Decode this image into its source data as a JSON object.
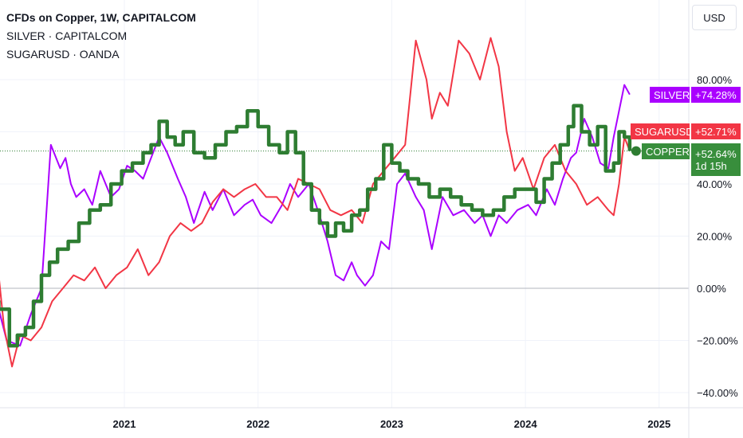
{
  "legend": {
    "title": "CFDs on Copper, 1W, CAPITALCOM",
    "compare1": "SILVER · CAPITALCOM",
    "compare2": "SUGARUSD · OANDA"
  },
  "currency_button": "USD",
  "price_tags": {
    "silver": {
      "name": "SILVER",
      "value": "+74.28%"
    },
    "sugar": {
      "name": "SUGARUSD",
      "value": "+52.71%"
    },
    "copper": {
      "name": "COPPER",
      "value": "+52.64%",
      "countdown": "1d 15h"
    }
  },
  "colors": {
    "copper": "#2e7d32",
    "silver": "#aa00ff",
    "sugar": "#f23645",
    "copper_tag": "#388e3c"
  },
  "chart_data": {
    "type": "line",
    "title": "CFDs on Copper, 1W, CAPITALCOM",
    "y_unit": "% change",
    "ylim": [
      -45,
      105
    ],
    "y_ticks": [
      "80.00%",
      "60.00%",
      "40.00%",
      "20.00%",
      "0.00%",
      "−20.00%",
      "−40.00%"
    ],
    "y_tick_values": [
      80,
      60,
      40,
      20,
      0,
      -20,
      -40
    ],
    "x_ticks": [
      "2021",
      "2022",
      "2023",
      "2024",
      "2025"
    ],
    "grid": true,
    "series": [
      {
        "name": "SILVER",
        "x": [
          2020.0,
          2020.05,
          2020.12,
          2020.22,
          2020.3,
          2020.38,
          2020.45,
          2020.52,
          2020.56,
          2020.6,
          2020.64,
          2020.7,
          2020.76,
          2020.82,
          2020.9,
          2020.96,
          2021.02,
          2021.08,
          2021.14,
          2021.2,
          2021.26,
          2021.32,
          2021.4,
          2021.46,
          2021.52,
          2021.6,
          2021.66,
          2021.74,
          2021.82,
          2021.9,
          2021.96,
          2022.02,
          2022.1,
          2022.18,
          2022.24,
          2022.3,
          2022.38,
          2022.46,
          2022.52,
          2022.58,
          2022.64,
          2022.7,
          2022.74,
          2022.8,
          2022.86,
          2022.92,
          2022.98,
          2023.04,
          2023.1,
          2023.18,
          2023.24,
          2023.3,
          2023.38,
          2023.46,
          2023.54,
          2023.62,
          2023.68,
          2023.74,
          2023.8,
          2023.86,
          2023.94,
          2024.02,
          2024.08,
          2024.16,
          2024.22,
          2024.28,
          2024.34,
          2024.38,
          2024.44,
          2024.5,
          2024.56,
          2024.62,
          2024.66,
          2024.7,
          2024.74,
          2024.78
        ],
        "values": [
          -1,
          -6,
          -20,
          -22,
          -10,
          0,
          55,
          46,
          50,
          40,
          35,
          38,
          32,
          45,
          35,
          38,
          47,
          45,
          42,
          50,
          58,
          52,
          42,
          35,
          25,
          37,
          30,
          38,
          28,
          32,
          34,
          28,
          25,
          32,
          40,
          35,
          40,
          28,
          18,
          5,
          3,
          10,
          5,
          1,
          5,
          18,
          15,
          40,
          44,
          35,
          30,
          15,
          35,
          28,
          30,
          25,
          28,
          20,
          28,
          25,
          30,
          32,
          28,
          38,
          32,
          42,
          50,
          52,
          65,
          58,
          48,
          46,
          58,
          68,
          78,
          74.28
        ]
      },
      {
        "name": "SUGARUSD",
        "x": [
          2020.0,
          2020.05,
          2020.1,
          2020.16,
          2020.22,
          2020.3,
          2020.38,
          2020.46,
          2020.54,
          2020.62,
          2020.7,
          2020.78,
          2020.86,
          2020.94,
          2021.02,
          2021.1,
          2021.18,
          2021.26,
          2021.34,
          2021.42,
          2021.5,
          2021.58,
          2021.66,
          2021.74,
          2021.82,
          2021.9,
          2021.98,
          2022.06,
          2022.14,
          2022.22,
          2022.3,
          2022.38,
          2022.46,
          2022.54,
          2022.62,
          2022.7,
          2022.78,
          2022.86,
          2022.94,
          2023.02,
          2023.1,
          2023.18,
          2023.26,
          2023.3,
          2023.36,
          2023.42,
          2023.5,
          2023.58,
          2023.66,
          2023.74,
          2023.8,
          2023.86,
          2023.92,
          2023.98,
          2024.06,
          2024.14,
          2024.22,
          2024.3,
          2024.38,
          2024.46,
          2024.54,
          2024.62,
          2024.66,
          2024.7,
          2024.74,
          2024.78
        ],
        "values": [
          0,
          10,
          -15,
          -30,
          -18,
          -20,
          -15,
          -5,
          0,
          5,
          3,
          8,
          0,
          5,
          8,
          15,
          5,
          10,
          20,
          25,
          22,
          25,
          33,
          38,
          35,
          38,
          40,
          35,
          35,
          30,
          42,
          40,
          38,
          30,
          28,
          30,
          25,
          40,
          45,
          50,
          55,
          95,
          80,
          65,
          75,
          70,
          95,
          90,
          80,
          96,
          85,
          60,
          45,
          50,
          38,
          50,
          55,
          45,
          40,
          32,
          35,
          30,
          28,
          40,
          58,
          52.71
        ]
      },
      {
        "name": "COPPER",
        "x": [
          2020.0,
          2020.06,
          2020.14,
          2020.2,
          2020.26,
          2020.32,
          2020.38,
          2020.44,
          2020.5,
          2020.58,
          2020.66,
          2020.74,
          2020.82,
          2020.9,
          2020.98,
          2021.06,
          2021.14,
          2021.2,
          2021.26,
          2021.32,
          2021.38,
          2021.44,
          2021.52,
          2021.6,
          2021.68,
          2021.76,
          2021.84,
          2021.92,
          2022.0,
          2022.08,
          2022.16,
          2022.22,
          2022.28,
          2022.34,
          2022.4,
          2022.46,
          2022.52,
          2022.58,
          2022.64,
          2022.7,
          2022.76,
          2022.82,
          2022.88,
          2022.94,
          2023.0,
          2023.06,
          2023.12,
          2023.2,
          2023.28,
          2023.36,
          2023.44,
          2023.52,
          2023.6,
          2023.68,
          2023.76,
          2023.84,
          2023.92,
          2024.0,
          2024.08,
          2024.14,
          2024.2,
          2024.26,
          2024.32,
          2024.36,
          2024.42,
          2024.48,
          2024.54,
          2024.6,
          2024.66,
          2024.7,
          2024.74,
          2024.78
        ],
        "values": [
          -5,
          -8,
          -22,
          -18,
          -15,
          -5,
          5,
          10,
          15,
          18,
          25,
          30,
          32,
          40,
          45,
          48,
          52,
          55,
          64,
          58,
          55,
          60,
          52,
          50,
          55,
          60,
          62,
          68,
          62,
          55,
          52,
          60,
          52,
          40,
          30,
          25,
          20,
          25,
          22,
          28,
          30,
          38,
          42,
          55,
          48,
          45,
          42,
          40,
          35,
          38,
          35,
          32,
          30,
          28,
          30,
          35,
          38,
          38,
          33,
          42,
          48,
          55,
          62,
          70,
          60,
          55,
          62,
          45,
          48,
          60,
          58,
          52.64
        ]
      }
    ]
  }
}
